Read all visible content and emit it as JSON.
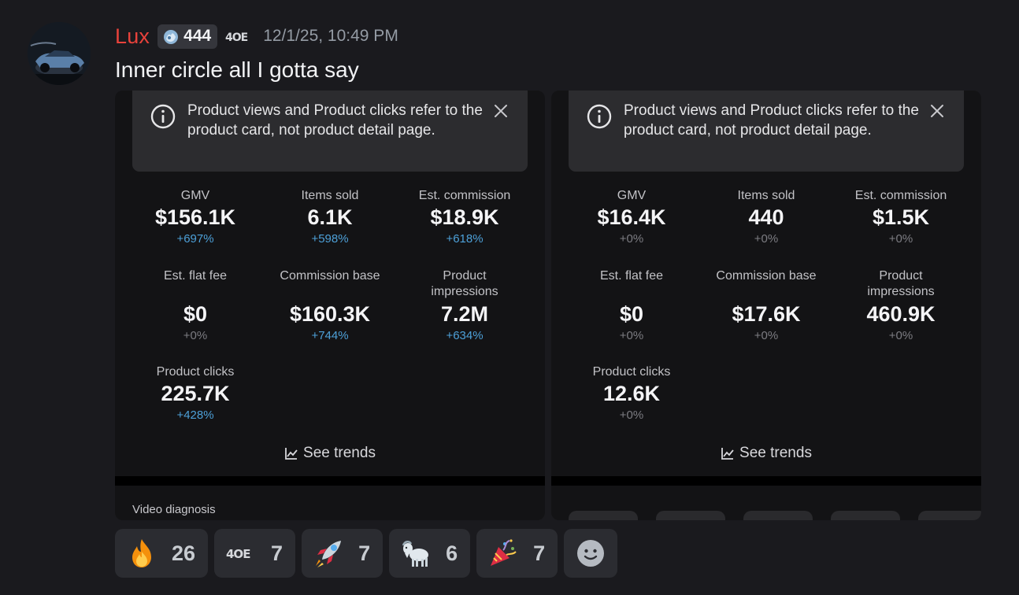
{
  "message": {
    "username": "Lux",
    "guild_tag": "444",
    "timestamp": "12/1/25, 10:49 PM",
    "text": "Inner circle all I gotta say"
  },
  "embeds": [
    {
      "notice": "Product views and Product clicks refer to the product card, not product detail page.",
      "metrics": [
        {
          "label": "GMV",
          "value": "$156.1K",
          "change": "+697%"
        },
        {
          "label": "Items sold",
          "value": "6.1K",
          "change": "+598%"
        },
        {
          "label": "Est. commission",
          "value": "$18.9K",
          "change": "+618%"
        },
        {
          "label": "Est. flat fee",
          "value": "$0",
          "change": "+0%"
        },
        {
          "label": "Commission base",
          "value": "$160.3K",
          "change": "+744%"
        },
        {
          "label": "Product impressions",
          "value": "7.2M",
          "change": "+634%"
        },
        {
          "label": "Product clicks",
          "value": "225.7K",
          "change": "+428%"
        }
      ],
      "see_trends": "See trends",
      "section_label": "Video diagnosis"
    },
    {
      "notice": "Product views and Product clicks refer to the product card, not product detail page.",
      "metrics": [
        {
          "label": "GMV",
          "value": "$16.4K",
          "change": "+0%"
        },
        {
          "label": "Items sold",
          "value": "440",
          "change": "+0%"
        },
        {
          "label": "Est. commission",
          "value": "$1.5K",
          "change": "+0%"
        },
        {
          "label": "Est. flat fee",
          "value": "$0",
          "change": "+0%"
        },
        {
          "label": "Commission base",
          "value": "$17.6K",
          "change": "+0%"
        },
        {
          "label": "Product impressions",
          "value": "460.9K",
          "change": "+0%"
        },
        {
          "label": "Product clicks",
          "value": "12.6K",
          "change": "+0%"
        }
      ],
      "see_trends": "See trends"
    }
  ],
  "reactions": [
    {
      "icon": "fire-emoji-icon",
      "count": "26"
    },
    {
      "icon": "custom-emote-icon",
      "count": "7"
    },
    {
      "icon": "rocket-emoji-icon",
      "count": "7"
    },
    {
      "icon": "goat-emoji-icon",
      "count": "6"
    },
    {
      "icon": "party-popper-emoji-icon",
      "count": "7"
    }
  ],
  "colors": {
    "username": "#e8423b",
    "positive_change": "#4da0d8",
    "neutral_change": "#7c7c82",
    "background": "#1a1a1e"
  }
}
